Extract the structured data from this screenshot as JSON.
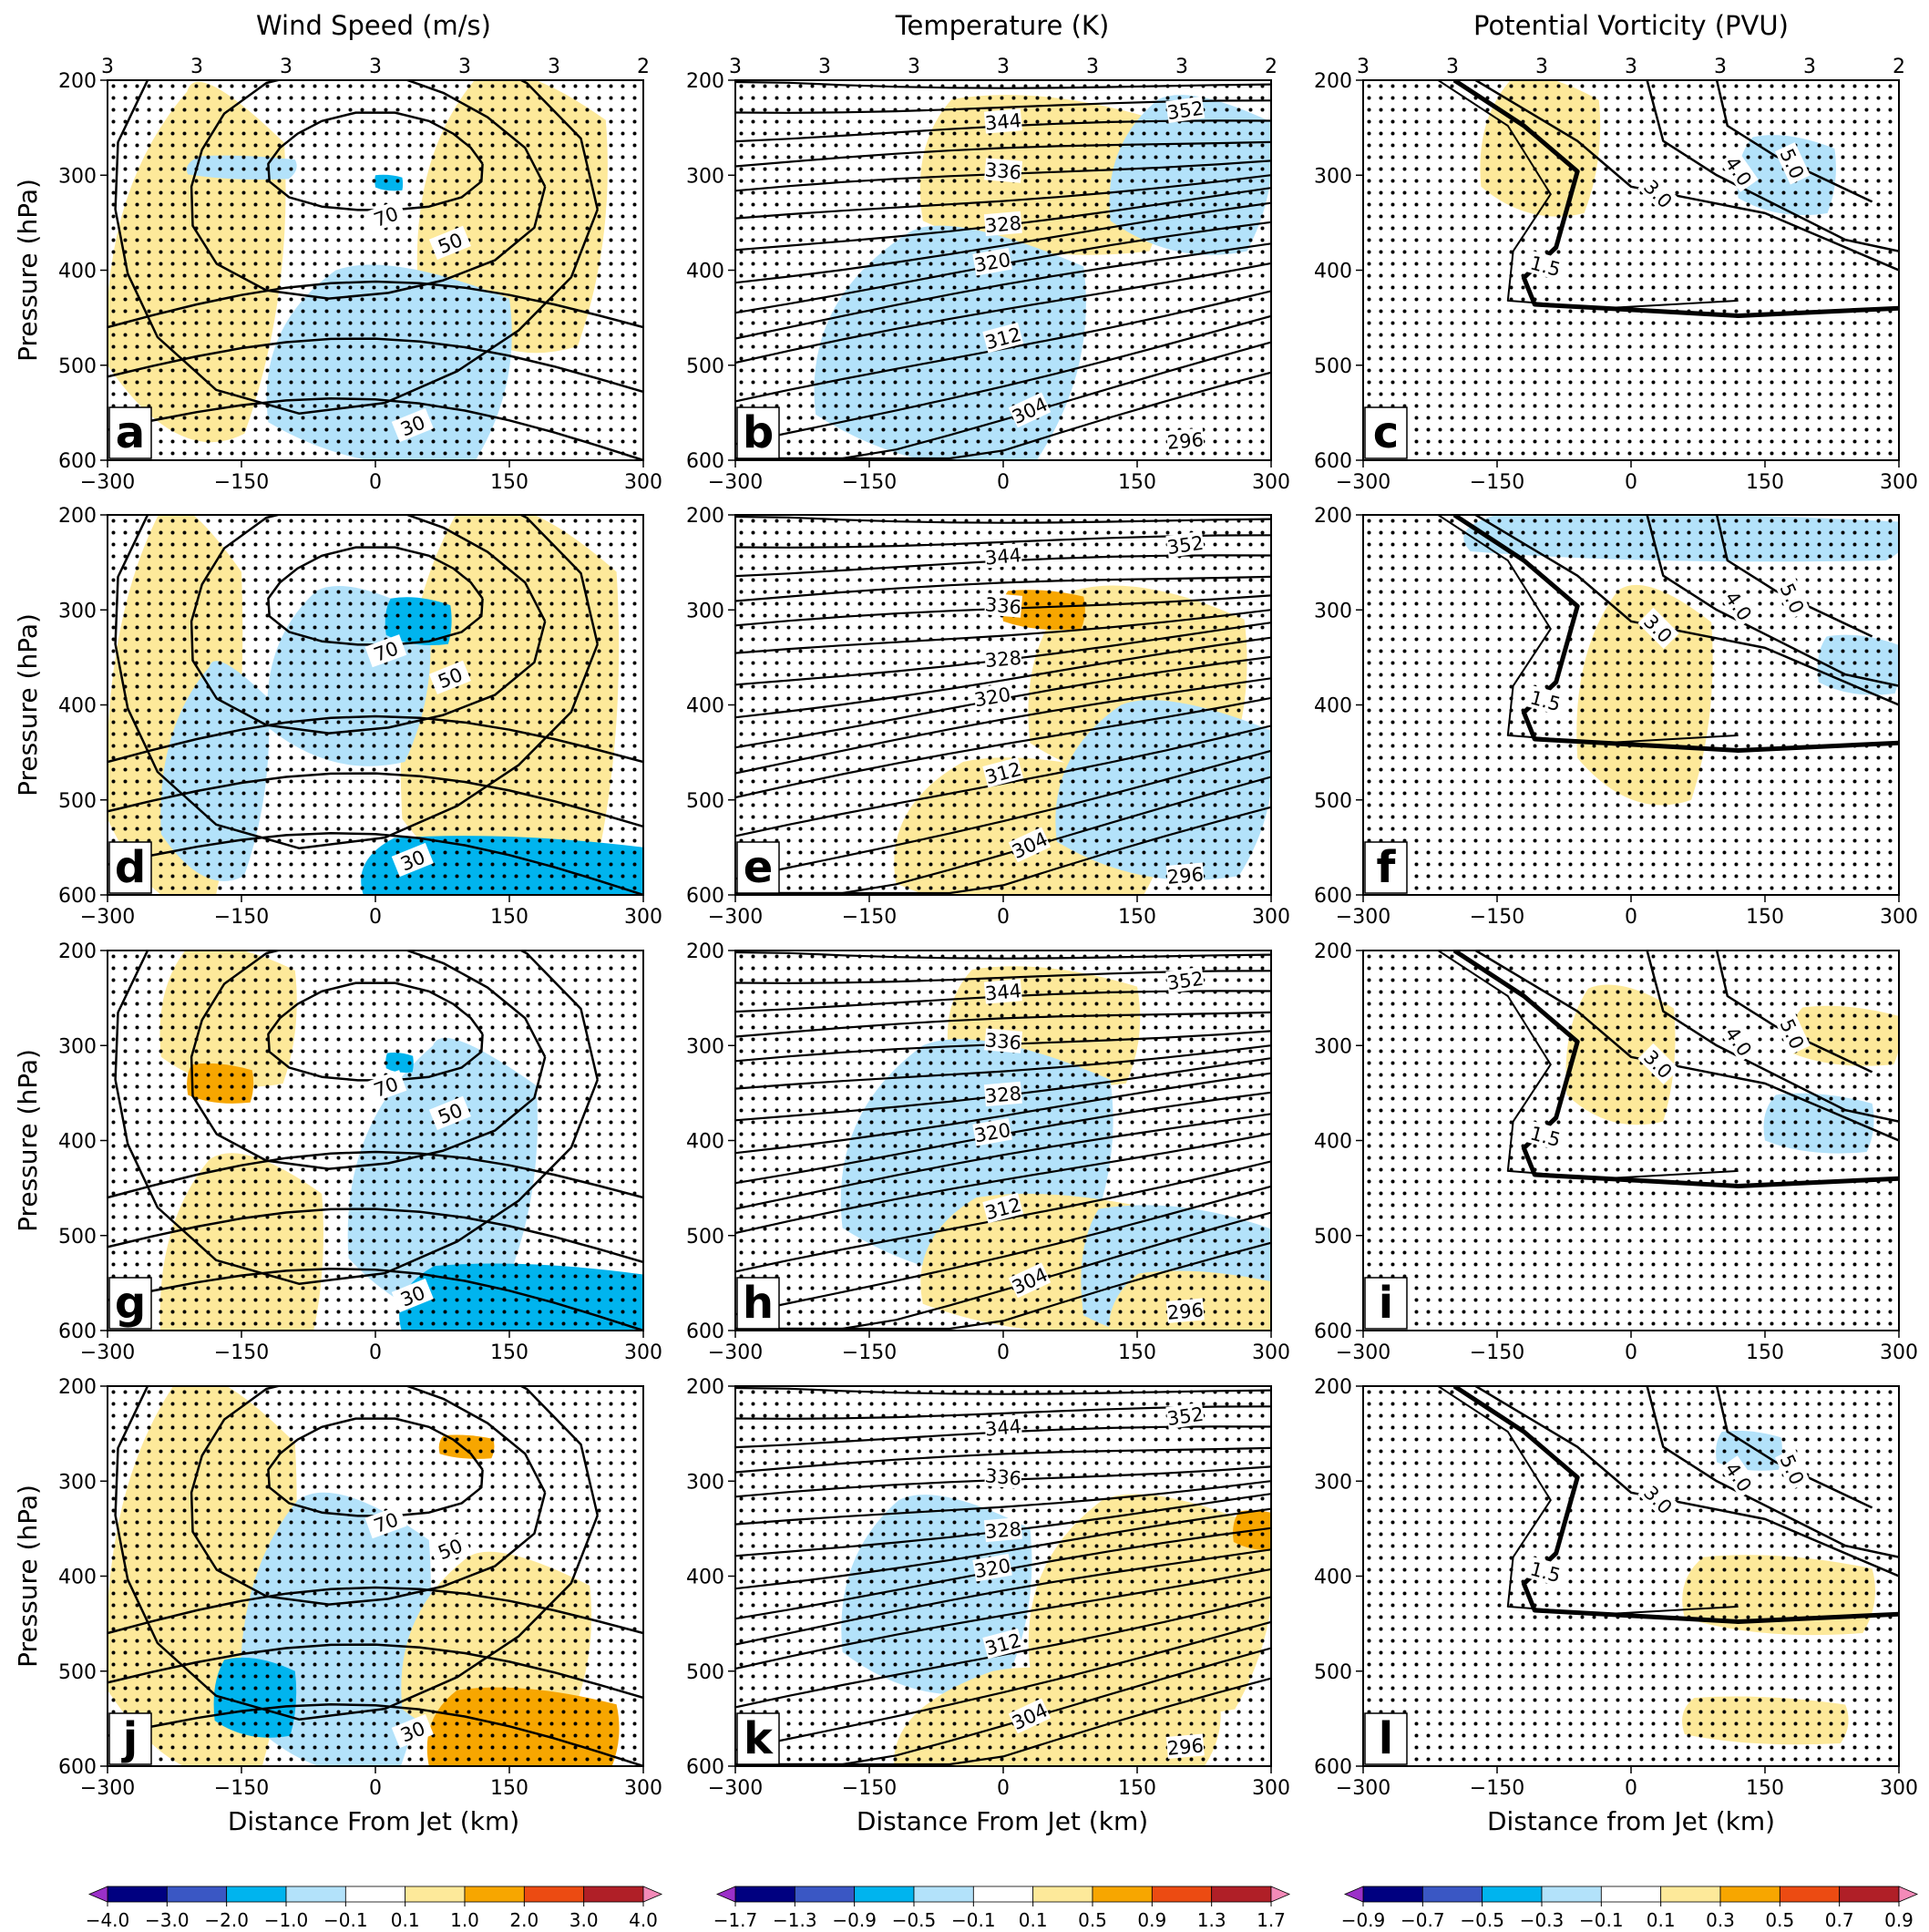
{
  "chart_data": {
    "type": "heatmap",
    "column_titles": [
      "Wind Speed (m/s)",
      "Temperature (K)",
      "Potential Vorticity (PVU)"
    ],
    "xlabels": [
      "Distance From Jet (km)",
      "Distance From Jet (km)",
      "Distance from Jet (km)"
    ],
    "ylabel": "Pressure (hPa)",
    "x_ticks": [
      "−300",
      "−150",
      "0",
      "150",
      "300"
    ],
    "x_tick_values": [
      -300,
      -150,
      0,
      150,
      300
    ],
    "y_ticks": [
      "200",
      "300",
      "400",
      "500",
      "600"
    ],
    "y_tick_values": [
      200,
      300,
      400,
      500,
      600
    ],
    "xlim": [
      -300,
      300
    ],
    "ylim": [
      600,
      200
    ],
    "top_counts": [
      "3",
      "3",
      "3",
      "3",
      "3",
      "3",
      "2"
    ],
    "top_count_x": [
      -300,
      -200,
      -100,
      0,
      100,
      200,
      300
    ],
    "panel_letters": [
      "a",
      "b",
      "c",
      "d",
      "e",
      "f",
      "g",
      "h",
      "i",
      "j",
      "k",
      "l"
    ],
    "contour_labels": {
      "wind": [
        "70",
        "50",
        "30"
      ],
      "temperature": [
        "352",
        "344",
        "336",
        "328",
        "320",
        "312",
        "304",
        "296"
      ],
      "pv": [
        "1.5",
        "3.0",
        "4.0",
        "5.0"
      ]
    },
    "colorbars": [
      {
        "labels": [
          "−4.0",
          "−3.0",
          "−2.0",
          "−1.0",
          "−0.1",
          "0.1",
          "1.0",
          "2.0",
          "3.0",
          "4.0"
        ]
      },
      {
        "labels": [
          "−1.7",
          "−1.3",
          "−0.9",
          "−0.5",
          "−0.1",
          "0.1",
          "0.5",
          "0.9",
          "1.3",
          "1.7"
        ]
      },
      {
        "labels": [
          "−0.9",
          "−0.7",
          "−0.5",
          "−0.3",
          "−0.1",
          "0.1",
          "0.3",
          "0.5",
          "0.7",
          "0.9"
        ]
      }
    ],
    "colors": {
      "under": "#9b30c8",
      "levels": [
        "#000080",
        "#3a57c4",
        "#00b4ee",
        "#b3e2fa",
        "#ffffff",
        "#fde99a",
        "#f7a600",
        "#ec4b12",
        "#b01f27"
      ],
      "over": "#f48ab8"
    }
  }
}
